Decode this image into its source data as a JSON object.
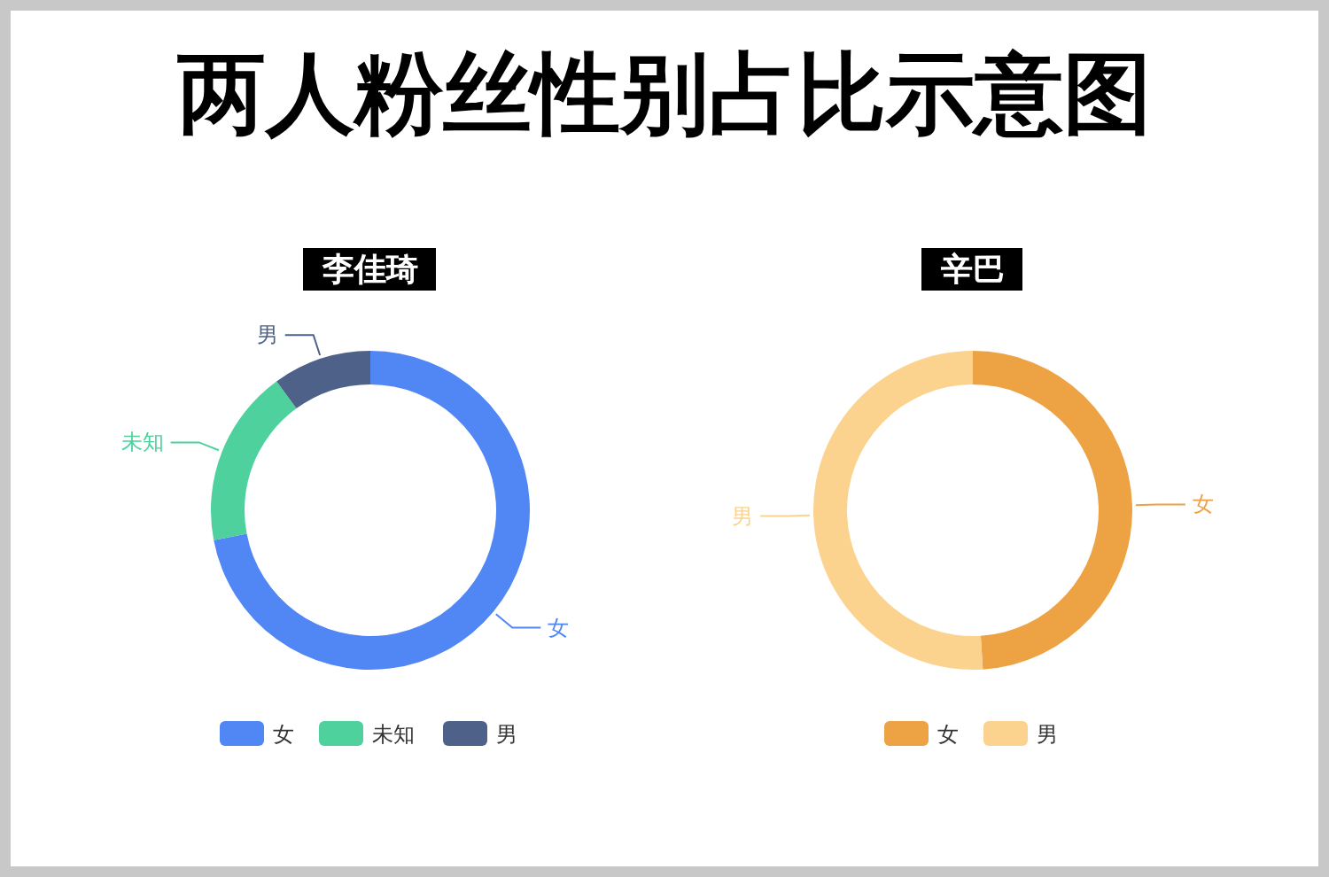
{
  "chart_data": [
    {
      "type": "donut",
      "title": "两人粉丝性别占比示意图",
      "subtitle": "李佳琦",
      "categories": [
        "女",
        "未知",
        "男"
      ],
      "values": [
        72,
        18,
        10
      ],
      "colors": [
        "#5087f5",
        "#4fd19d",
        "#4e6189"
      ],
      "legend": "bottom"
    },
    {
      "type": "donut",
      "title": "辛巴",
      "categories": [
        "女",
        "男"
      ],
      "values": [
        49,
        51
      ],
      "colors": [
        "#eda244",
        "#fbd38f"
      ],
      "legend": "bottom"
    }
  ]
}
